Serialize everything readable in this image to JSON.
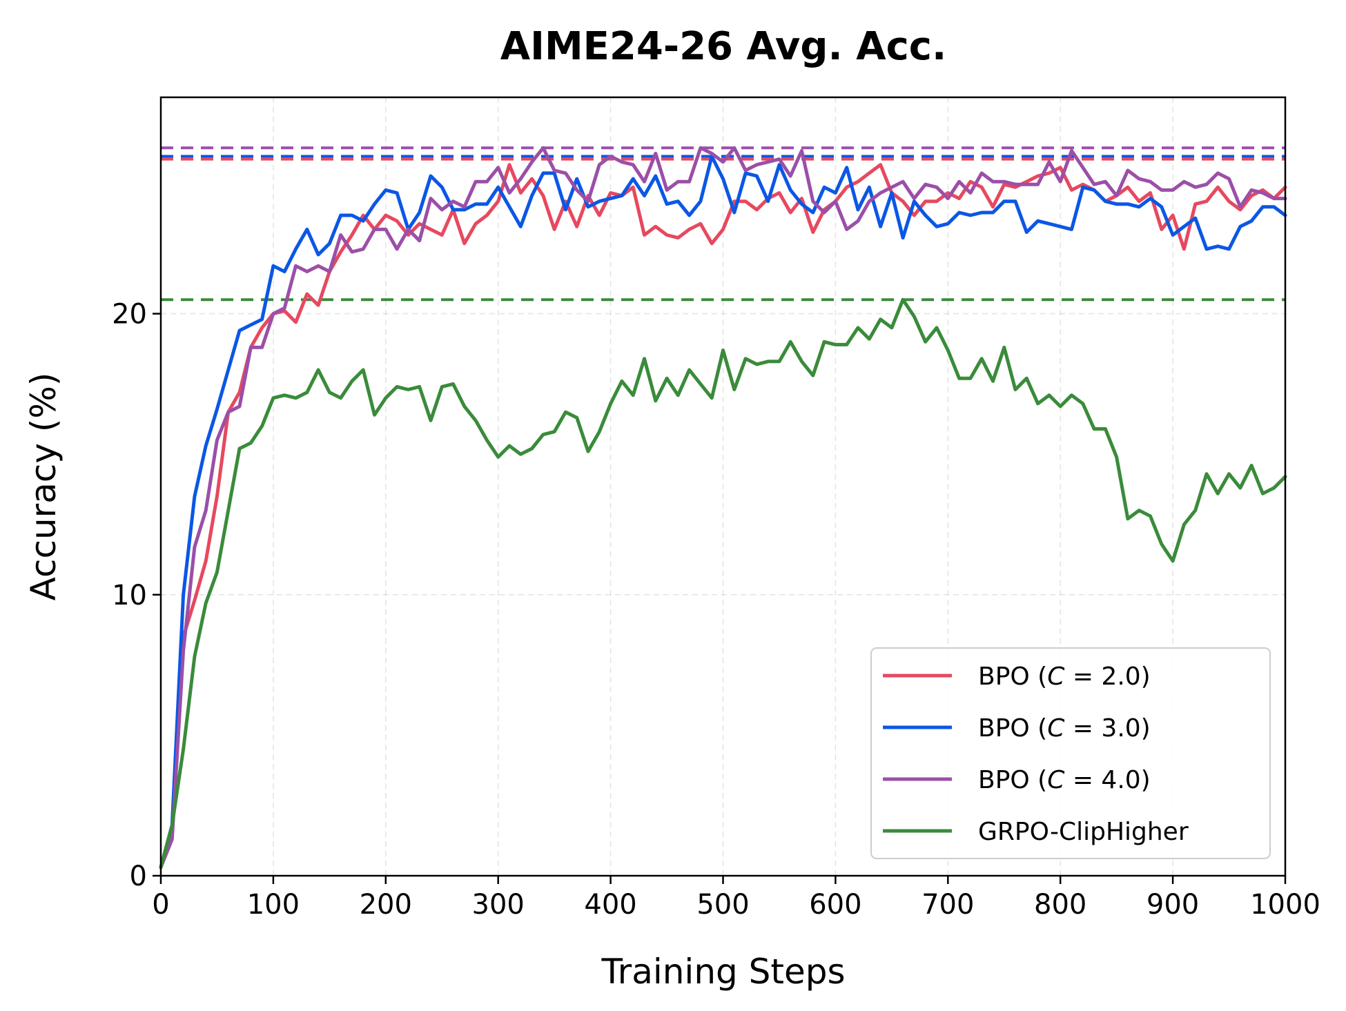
{
  "chart_data": {
    "type": "line",
    "title": "AIME24-26 Avg. Acc.",
    "xlabel": "Training Steps",
    "ylabel": "Accuracy (%)",
    "xlim": [
      0,
      1000
    ],
    "ylim": [
      0,
      27.7
    ],
    "xticks": [
      0,
      100,
      200,
      300,
      400,
      500,
      600,
      700,
      800,
      900,
      1000
    ],
    "yticks": [
      0,
      10,
      20
    ],
    "grid": true,
    "legend_position": "lower-right",
    "x": [
      0,
      10,
      20,
      30,
      40,
      50,
      60,
      70,
      80,
      90,
      100,
      110,
      120,
      130,
      140,
      150,
      160,
      170,
      180,
      190,
      200,
      210,
      220,
      230,
      240,
      250,
      260,
      270,
      280,
      290,
      300,
      310,
      320,
      330,
      340,
      350,
      360,
      370,
      380,
      390,
      400,
      410,
      420,
      430,
      440,
      450,
      460,
      470,
      480,
      490,
      500,
      510,
      520,
      530,
      540,
      550,
      560,
      570,
      580,
      590,
      600,
      610,
      620,
      630,
      640,
      650,
      660,
      670,
      680,
      690,
      700,
      710,
      720,
      730,
      740,
      750,
      760,
      770,
      780,
      790,
      800,
      810,
      820,
      830,
      840,
      850,
      860,
      870,
      880,
      890,
      900,
      910,
      920,
      930,
      940,
      950,
      960,
      970,
      980,
      990,
      1000
    ],
    "series": [
      {
        "name": "BPO (C = 2.0)",
        "legend_prefix": "BPO (",
        "legend_var": "C",
        "legend_suffix": " = 2.0)",
        "color": "#e6495f",
        "reference": 25.5,
        "values": [
          0.3,
          1.5,
          8.5,
          9.8,
          11.2,
          13.5,
          16.5,
          17.2,
          18.8,
          19.5,
          20.0,
          20.1,
          19.7,
          20.7,
          20.3,
          21.5,
          22.2,
          22.8,
          23.5,
          23.0,
          23.5,
          23.3,
          22.8,
          23.2,
          23.0,
          22.8,
          23.7,
          22.5,
          23.2,
          23.5,
          24.0,
          25.3,
          24.3,
          24.8,
          24.2,
          23.0,
          24.0,
          23.1,
          24.2,
          23.5,
          24.3,
          24.2,
          24.5,
          22.8,
          23.1,
          22.8,
          22.7,
          23.0,
          23.2,
          22.5,
          23.0,
          24.0,
          24.0,
          23.7,
          24.1,
          24.3,
          23.6,
          24.1,
          22.9,
          23.7,
          24.0,
          24.5,
          24.7,
          25.0,
          25.3,
          24.3,
          24.0,
          23.5,
          24.0,
          24.0,
          24.3,
          24.1,
          24.7,
          24.5,
          23.8,
          24.6,
          24.5,
          24.7,
          24.9,
          25.0,
          25.2,
          24.4,
          24.6,
          24.4,
          24.0,
          24.2,
          24.5,
          24.0,
          24.3,
          23.0,
          23.5,
          22.3,
          23.9,
          24.0,
          24.5,
          24.0,
          23.7,
          24.2,
          24.4,
          24.1,
          24.5
        ]
      },
      {
        "name": "BPO (C = 3.0)",
        "legend_prefix": "BPO (",
        "legend_var": "C",
        "legend_suffix": " = 3.0)",
        "color": "#0b57e5",
        "reference": 25.6,
        "values": [
          0.3,
          1.8,
          10.0,
          13.5,
          15.3,
          16.6,
          18.0,
          19.4,
          19.6,
          19.8,
          21.7,
          21.5,
          22.3,
          23.0,
          22.1,
          22.5,
          23.5,
          23.5,
          23.3,
          23.9,
          24.4,
          24.3,
          23.0,
          23.6,
          24.9,
          24.5,
          23.7,
          23.7,
          23.9,
          23.9,
          24.5,
          23.8,
          23.1,
          24.2,
          25.0,
          25.0,
          23.7,
          24.8,
          23.8,
          24.0,
          24.1,
          24.2,
          24.8,
          24.2,
          24.9,
          23.9,
          24.0,
          23.5,
          24.0,
          25.6,
          24.8,
          23.6,
          25.0,
          24.9,
          24.0,
          25.3,
          24.4,
          23.9,
          23.6,
          24.5,
          24.3,
          25.2,
          23.7,
          24.5,
          23.1,
          24.3,
          22.7,
          24.0,
          23.5,
          23.1,
          23.2,
          23.6,
          23.5,
          23.6,
          23.6,
          24.0,
          24.0,
          22.9,
          23.3,
          23.2,
          23.1,
          23.0,
          24.5,
          24.4,
          24.0,
          23.9,
          23.9,
          23.8,
          24.1,
          23.8,
          22.8,
          23.1,
          23.4,
          22.3,
          22.4,
          22.3,
          23.1,
          23.3,
          23.8,
          23.8,
          23.5
        ]
      },
      {
        "name": "BPO (C = 4.0)",
        "legend_prefix": "BPO (",
        "legend_var": "C",
        "legend_suffix": " = 4.0)",
        "color": "#9b4fa8",
        "reference": 25.9,
        "values": [
          0.3,
          1.3,
          8.0,
          11.7,
          13.0,
          15.5,
          16.5,
          16.7,
          18.8,
          18.8,
          20.0,
          20.2,
          21.7,
          21.5,
          21.7,
          21.5,
          22.8,
          22.2,
          22.3,
          23.0,
          23.0,
          22.3,
          23.0,
          22.6,
          24.1,
          23.7,
          24.0,
          23.8,
          24.7,
          24.7,
          25.2,
          24.3,
          24.8,
          25.4,
          25.9,
          25.1,
          25.0,
          24.4,
          24.0,
          25.3,
          25.6,
          25.4,
          25.3,
          24.7,
          25.7,
          24.4,
          24.7,
          24.7,
          25.9,
          25.7,
          25.4,
          25.9,
          25.1,
          25.3,
          25.4,
          25.5,
          24.9,
          25.8,
          24.0,
          23.6,
          24.0,
          23.0,
          23.3,
          24.0,
          24.3,
          24.5,
          24.7,
          24.1,
          24.6,
          24.5,
          24.1,
          24.7,
          24.3,
          25.0,
          24.7,
          24.7,
          24.6,
          24.6,
          24.6,
          25.4,
          24.7,
          25.8,
          25.2,
          24.6,
          24.7,
          24.2,
          25.1,
          24.8,
          24.7,
          24.4,
          24.4,
          24.7,
          24.5,
          24.6,
          25.0,
          24.8,
          23.8,
          24.4,
          24.3,
          24.1,
          24.1
        ]
      },
      {
        "name": "GRPO-ClipHigher",
        "legend_prefix": "GRPO-ClipHigher",
        "legend_var": "",
        "legend_suffix": "",
        "color": "#3a8b3a",
        "reference": 20.5,
        "values": [
          0.3,
          1.8,
          4.5,
          7.8,
          9.7,
          10.8,
          13.0,
          15.2,
          15.4,
          16.0,
          17.0,
          17.1,
          17.0,
          17.2,
          18.0,
          17.2,
          17.0,
          17.6,
          18.0,
          16.4,
          17.0,
          17.4,
          17.3,
          17.4,
          16.2,
          17.4,
          17.5,
          16.7,
          16.2,
          15.5,
          14.9,
          15.3,
          15.0,
          15.2,
          15.7,
          15.8,
          16.5,
          16.3,
          15.1,
          15.8,
          16.8,
          17.6,
          17.1,
          18.4,
          16.9,
          17.7,
          17.1,
          18.0,
          17.5,
          17.0,
          18.7,
          17.3,
          18.4,
          18.2,
          18.3,
          18.3,
          19.0,
          18.3,
          17.8,
          19.0,
          18.9,
          18.9,
          19.5,
          19.1,
          19.8,
          19.5,
          20.5,
          19.9,
          19.0,
          19.5,
          18.7,
          17.7,
          17.7,
          18.4,
          17.6,
          18.8,
          17.3,
          17.7,
          16.8,
          17.1,
          16.7,
          17.1,
          16.8,
          15.9,
          15.9,
          14.9,
          12.7,
          13.0,
          12.8,
          11.8,
          11.2,
          12.5,
          13.0,
          14.3,
          13.6,
          14.3,
          13.8,
          14.6,
          13.6,
          13.8,
          14.2
        ]
      }
    ]
  }
}
